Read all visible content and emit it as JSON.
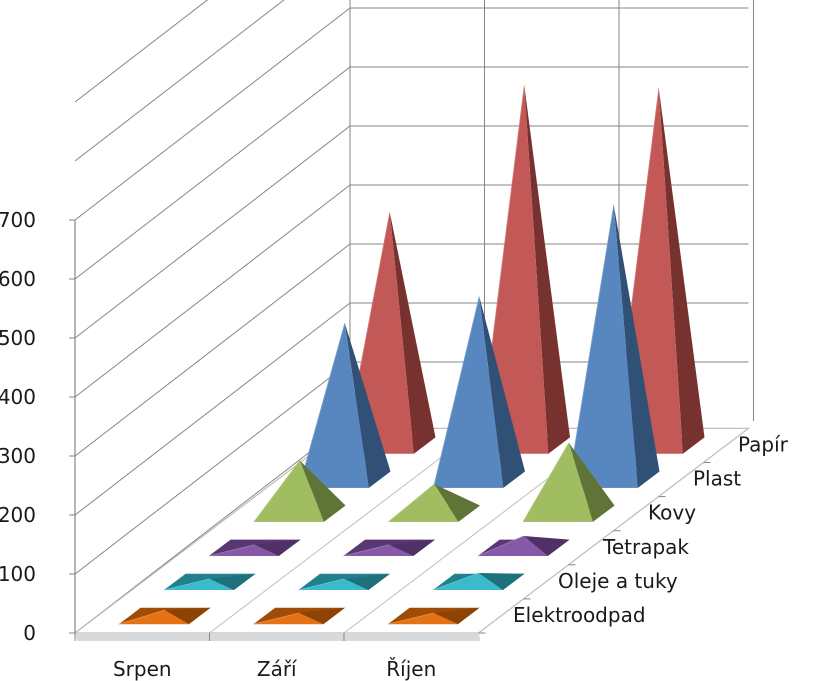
{
  "chart_data": {
    "type": "bar",
    "variant": "3d-pyramid",
    "title": "",
    "xlabel": "",
    "ylabel": "",
    "ylim": [
      0,
      700
    ],
    "yticks": [
      0,
      100,
      200,
      300,
      400,
      500,
      600,
      700
    ],
    "grid": true,
    "categories": [
      "Srpen",
      "Září",
      "Říjen"
    ],
    "series": [
      {
        "name": "Elektroodpad",
        "color": "#E46C0A",
        "values": [
          10,
          5,
          5
        ]
      },
      {
        "name": "Oleje a tuky",
        "color": "#31B6C8",
        "values": [
          5,
          5,
          15
        ]
      },
      {
        "name": "Tetrapak",
        "color": "#7F4FA3",
        "values": [
          5,
          5,
          20
        ]
      },
      {
        "name": "Kovy",
        "color": "#9BBB59",
        "values": [
          90,
          50,
          120
        ]
      },
      {
        "name": "Plast",
        "color": "#4F81BD",
        "values": [
          265,
          310,
          465
        ]
      },
      {
        "name": "Papír",
        "color": "#C0504D",
        "values": [
          395,
          610,
          605
        ]
      }
    ]
  }
}
